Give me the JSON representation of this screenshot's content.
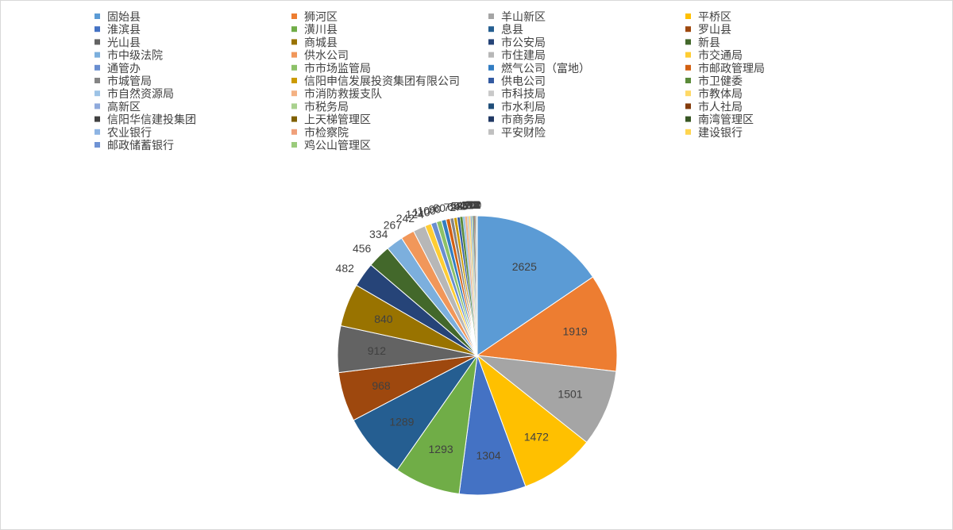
{
  "chart_data": {
    "type": "pie",
    "title": "",
    "legend_position": "top",
    "categories": [
      "固始县",
      "狮河区",
      "羊山新区",
      "平桥区",
      "淮滨县",
      "潢川县",
      "息县",
      "罗山县",
      "光山县",
      "商城县",
      "市公安局",
      "新县",
      "市中级法院",
      "供水公司",
      "市住建局",
      "市交通局",
      "通管办",
      "市市场监管局",
      "燃气公司（富地）",
      "市邮政管理局",
      "市城管局",
      "信阳申信发展投资集团有限公司",
      "供电公司",
      "市卫健委",
      "市自然资源局",
      "市消防救援支队",
      "市科技局",
      "市教体局",
      "高新区",
      "市税务局",
      "市水利局",
      "市人社局",
      "信阳华信建投集团",
      "上天梯管理区",
      "市商务局",
      "南湾管理区",
      "农业银行",
      "市检察院",
      "平安财险",
      "建设银行",
      "邮政储蓄银行",
      "鸡公山管理区"
    ],
    "values": [
      2625,
      1919,
      1501,
      1472,
      1304,
      1293,
      1289,
      968,
      912,
      840,
      482,
      456,
      334,
      267,
      242,
      124,
      110,
      100,
      90,
      80,
      72,
      64,
      58,
      52,
      46,
      40,
      35,
      30,
      26,
      22,
      18,
      15,
      12,
      10,
      8,
      6,
      5,
      4,
      3,
      2,
      1,
      1
    ],
    "labels": [
      "2625",
      "1919",
      "1501",
      "1472",
      "1304",
      "1293",
      "1289",
      "968",
      "912",
      "840",
      "482",
      "456",
      "334",
      "267",
      "242",
      "124",
      "110",
      "100",
      "90",
      "80",
      "72",
      "64",
      "58",
      "52",
      "46",
      "40",
      "35",
      "30",
      "26",
      "22",
      "18",
      "15",
      "12",
      "10",
      "8",
      "6",
      "5",
      "4",
      "3",
      "2",
      "1",
      "1"
    ],
    "colors": [
      "#5B9BD5",
      "#ED7D31",
      "#A5A5A5",
      "#FFC000",
      "#4472C4",
      "#70AD47",
      "#255E91",
      "#9E480E",
      "#636363",
      "#997300",
      "#264478",
      "#43682B",
      "#7CAFDD",
      "#F1975A",
      "#B7B7B7",
      "#FFCD33",
      "#698ED0",
      "#8CC168",
      "#327DC2",
      "#D26012",
      "#848484",
      "#CC9A00",
      "#335AA1",
      "#5A8A39",
      "#9DC3E6",
      "#F4B183",
      "#C9C9C9",
      "#FFD966",
      "#8FAADC",
      "#A9D18E",
      "#1F4E79",
      "#843C0C",
      "#404040",
      "#7F6000",
      "#203864",
      "#375623",
      "#8EB4E3",
      "#F0A07A",
      "#C0C0C0",
      "#FFD54F",
      "#6F93D4",
      "#9BCB7C"
    ]
  }
}
